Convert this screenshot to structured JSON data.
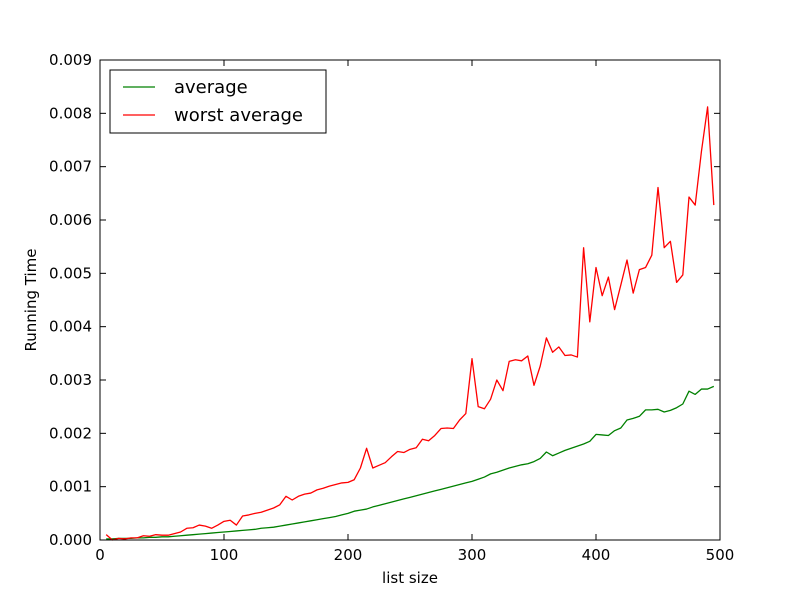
{
  "chart_data": {
    "type": "line",
    "title": "",
    "xlabel": "list size",
    "ylabel": "Running Time",
    "xlim": [
      0,
      500
    ],
    "ylim": [
      0,
      0.009
    ],
    "xticks": [
      "0",
      "100",
      "200",
      "300",
      "400",
      "500"
    ],
    "yticks": [
      "0.000",
      "0.001",
      "0.002",
      "0.003",
      "0.004",
      "0.005",
      "0.006",
      "0.007",
      "0.008",
      "0.009"
    ],
    "grid": false,
    "legend_position": "top-left",
    "x": [
      5,
      10,
      15,
      20,
      25,
      30,
      35,
      40,
      45,
      50,
      55,
      60,
      65,
      70,
      75,
      80,
      85,
      90,
      95,
      100,
      105,
      110,
      115,
      120,
      125,
      130,
      135,
      140,
      145,
      150,
      155,
      160,
      165,
      170,
      175,
      180,
      185,
      190,
      195,
      200,
      205,
      210,
      215,
      220,
      225,
      230,
      235,
      240,
      245,
      250,
      255,
      260,
      265,
      270,
      275,
      280,
      285,
      290,
      295,
      300,
      305,
      310,
      315,
      320,
      325,
      330,
      335,
      340,
      345,
      350,
      355,
      360,
      365,
      370,
      375,
      380,
      385,
      390,
      395,
      400,
      405,
      410,
      415,
      420,
      425,
      430,
      435,
      440,
      445,
      450,
      455,
      460,
      465,
      470,
      475,
      480,
      485,
      490,
      495
    ],
    "series": [
      {
        "name": "average",
        "color": "#008000",
        "values": [
          2e-05,
          2e-05,
          3e-05,
          3e-05,
          3e-05,
          4e-05,
          4e-05,
          5e-05,
          5e-05,
          6e-05,
          6e-05,
          7e-05,
          8e-05,
          9e-05,
          0.0001,
          0.00011,
          0.00012,
          0.00013,
          0.00014,
          0.00015,
          0.00016,
          0.00017,
          0.00018,
          0.00019,
          0.0002,
          0.00022,
          0.00023,
          0.00024,
          0.00026,
          0.00028,
          0.0003,
          0.00032,
          0.00034,
          0.00036,
          0.00038,
          0.0004,
          0.00042,
          0.00044,
          0.00047,
          0.0005,
          0.00054,
          0.00056,
          0.00058,
          0.00062,
          0.00065,
          0.00068,
          0.00071,
          0.00074,
          0.00077,
          0.0008,
          0.00083,
          0.00086,
          0.00089,
          0.00092,
          0.00095,
          0.00098,
          0.00101,
          0.00104,
          0.00107,
          0.0011,
          0.00114,
          0.00118,
          0.00124,
          0.00127,
          0.00131,
          0.00135,
          0.00138,
          0.00141,
          0.00143,
          0.00147,
          0.00153,
          0.00165,
          0.00158,
          0.00163,
          0.00168,
          0.00172,
          0.00176,
          0.0018,
          0.00185,
          0.00198,
          0.00197,
          0.00196,
          0.00205,
          0.0021,
          0.00225,
          0.00228,
          0.00232,
          0.00244,
          0.00244,
          0.00245,
          0.0024,
          0.00243,
          0.00248,
          0.00255,
          0.00279,
          0.00273,
          0.00283,
          0.00283,
          0.00288
        ]
      },
      {
        "name": "worst average",
        "color": "#ff0000",
        "values": [
          0.0001,
          0.0,
          3e-05,
          2e-05,
          4e-05,
          4e-05,
          8e-05,
          7e-05,
          0.0001,
          9e-05,
          9e-05,
          0.00012,
          0.00015,
          0.00022,
          0.00023,
          0.00028,
          0.00026,
          0.00022,
          0.00028,
          0.00035,
          0.00037,
          0.00028,
          0.00045,
          0.00047,
          0.0005,
          0.00052,
          0.00056,
          0.0006,
          0.00066,
          0.00082,
          0.00075,
          0.00082,
          0.00086,
          0.00088,
          0.00094,
          0.00097,
          0.00101,
          0.00104,
          0.00107,
          0.00108,
          0.00113,
          0.00135,
          0.00172,
          0.00135,
          0.0014,
          0.00145,
          0.00156,
          0.00166,
          0.00164,
          0.0017,
          0.00173,
          0.00189,
          0.00186,
          0.00196,
          0.00209,
          0.0021,
          0.00209,
          0.00225,
          0.00237,
          0.0034,
          0.0025,
          0.00246,
          0.00264,
          0.003,
          0.0028,
          0.00335,
          0.00338,
          0.00336,
          0.00345,
          0.0029,
          0.00326,
          0.00379,
          0.00352,
          0.00362,
          0.00346,
          0.00347,
          0.00343,
          0.00548,
          0.00409,
          0.00511,
          0.00458,
          0.00493,
          0.00432,
          0.00478,
          0.00525,
          0.00463,
          0.00507,
          0.00511,
          0.00534,
          0.00661,
          0.00548,
          0.0056,
          0.00483,
          0.00497,
          0.00643,
          0.00628,
          0.00728,
          0.00812,
          0.00628
        ]
      }
    ]
  }
}
